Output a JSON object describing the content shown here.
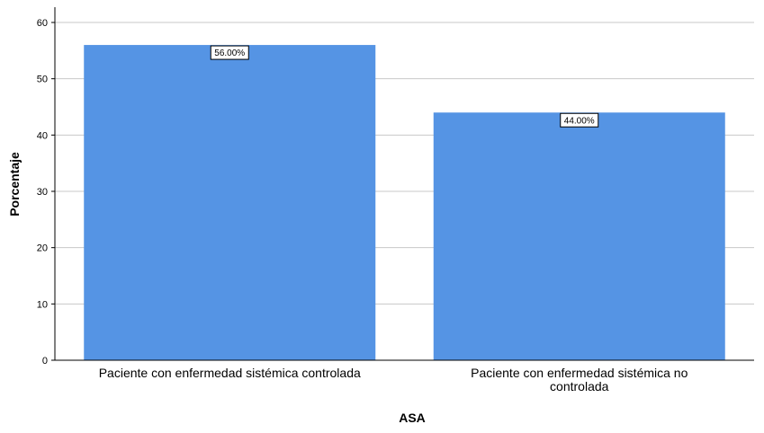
{
  "chart_data": {
    "type": "bar",
    "categories": [
      "Paciente con enfermedad sistémica  controlada",
      "Paciente con enfermedad sistémica no controlada"
    ],
    "category_label_lines": [
      [
        "Paciente con enfermedad sistémica  controlada"
      ],
      [
        "Paciente con enfermedad sistémica no",
        "controlada"
      ]
    ],
    "values": [
      56.0,
      44.0
    ],
    "data_labels": [
      "56.00%",
      "44.00%"
    ],
    "title": "",
    "xlabel": "ASA",
    "ylabel": "Porcentaje",
    "ylim": [
      0,
      60
    ],
    "yticks": [
      0,
      10,
      20,
      30,
      40,
      50,
      60
    ],
    "grid": "horizontal",
    "legend": "none",
    "bar_color": "#5594e4"
  }
}
